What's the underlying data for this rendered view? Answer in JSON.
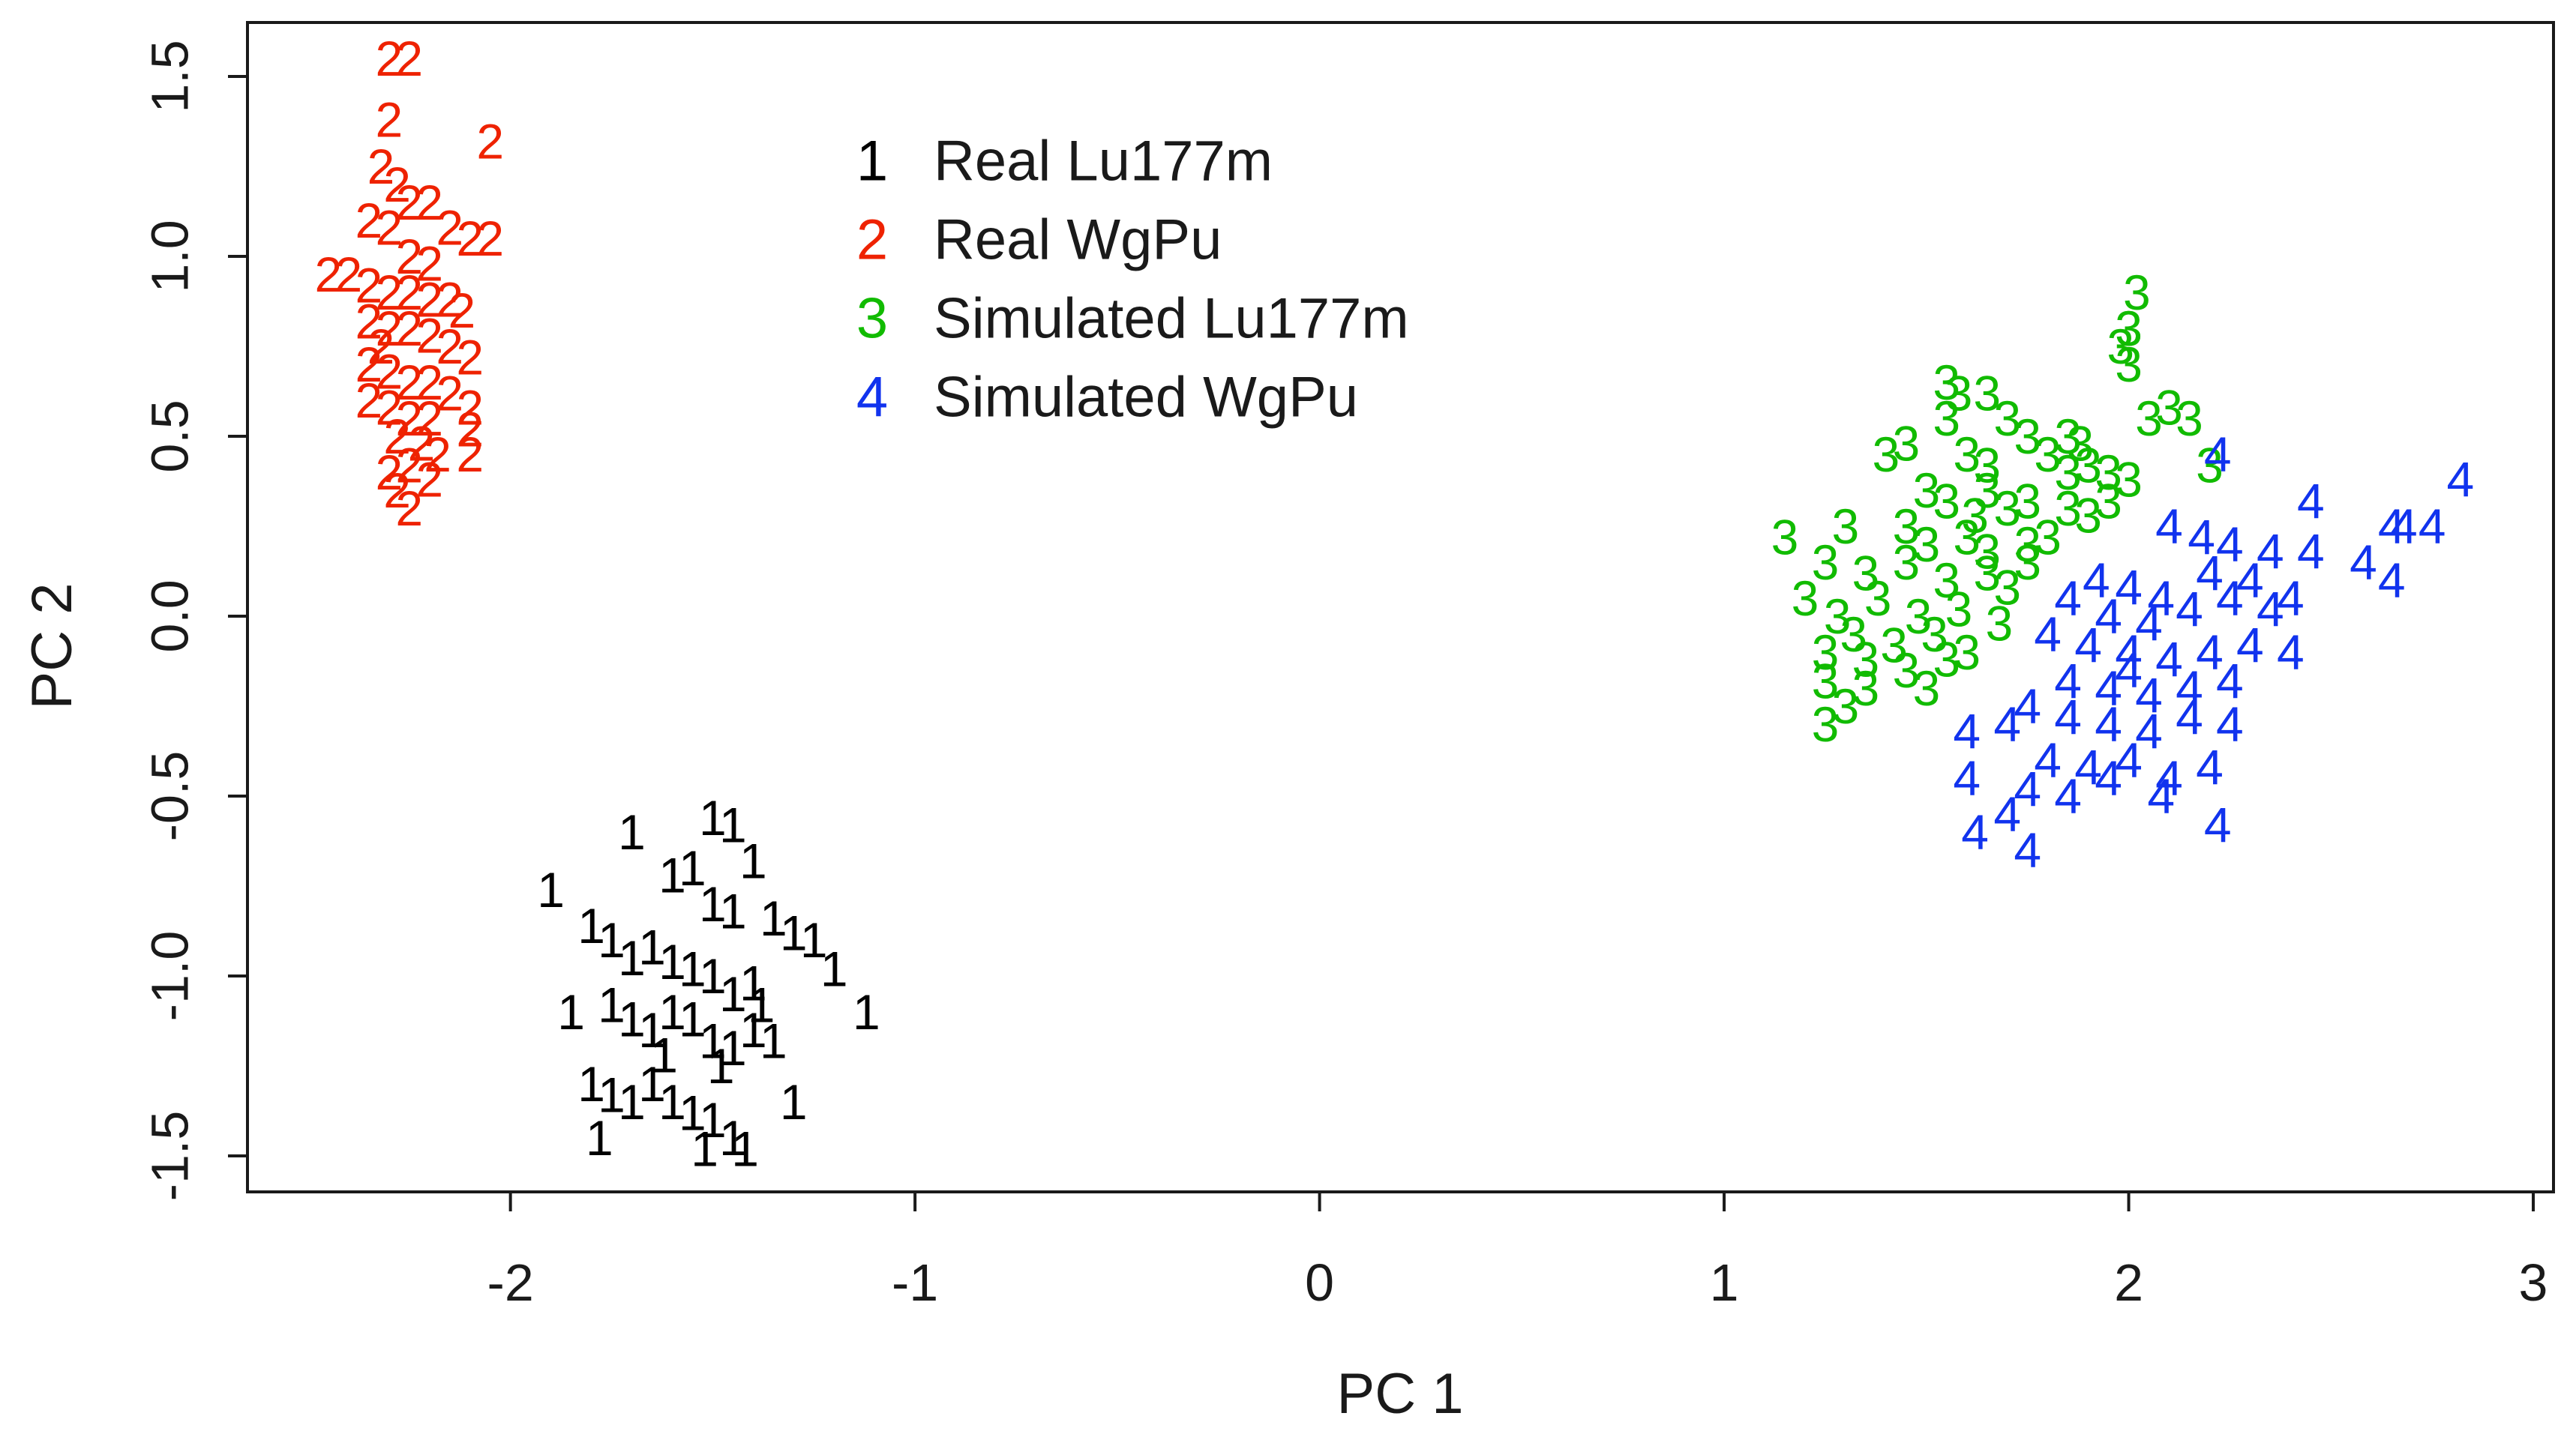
{
  "chart_data": {
    "type": "scatter",
    "title": "",
    "xlabel": "PC 1",
    "ylabel": "PC 2",
    "xlim": [
      -2.65,
      3.05
    ],
    "ylim": [
      -1.6,
      1.65
    ],
    "xticks": [
      -2,
      -1,
      0,
      1,
      2,
      3
    ],
    "yticks": [
      -1.5,
      -1.0,
      -0.5,
      0.0,
      0.5,
      1.0,
      1.5
    ],
    "xtick_labels": [
      "-2",
      "-1",
      "0",
      "1",
      "2",
      "3"
    ],
    "ytick_labels": [
      "-1.5",
      "-1.0",
      "-0.5",
      "0.0",
      "0.5",
      "1.0",
      "1.5"
    ],
    "grid": false,
    "legend_position": "top-center",
    "series": [
      {
        "name": "Real Lu177m",
        "symbol": "1",
        "color": "#000000",
        "points": [
          [
            -1.9,
            -0.76
          ],
          [
            -1.7,
            -0.6
          ],
          [
            -1.5,
            -0.56
          ],
          [
            -1.45,
            -0.58
          ],
          [
            -1.4,
            -0.68
          ],
          [
            -1.6,
            -0.72
          ],
          [
            -1.55,
            -0.7
          ],
          [
            -1.5,
            -0.8
          ],
          [
            -1.45,
            -0.82
          ],
          [
            -1.35,
            -0.84
          ],
          [
            -1.3,
            -0.88
          ],
          [
            -1.25,
            -0.9
          ],
          [
            -1.8,
            -0.86
          ],
          [
            -1.75,
            -0.9
          ],
          [
            -1.7,
            -0.95
          ],
          [
            -1.65,
            -0.92
          ],
          [
            -1.6,
            -0.96
          ],
          [
            -1.55,
            -0.98
          ],
          [
            -1.5,
            -1.0
          ],
          [
            -1.45,
            -1.05
          ],
          [
            -1.4,
            -1.02
          ],
          [
            -1.38,
            -1.08
          ],
          [
            -1.2,
            -0.98
          ],
          [
            -1.12,
            -1.1
          ],
          [
            -1.85,
            -1.1
          ],
          [
            -1.75,
            -1.08
          ],
          [
            -1.7,
            -1.12
          ],
          [
            -1.65,
            -1.15
          ],
          [
            -1.6,
            -1.1
          ],
          [
            -1.55,
            -1.12
          ],
          [
            -1.5,
            -1.18
          ],
          [
            -1.45,
            -1.2
          ],
          [
            -1.4,
            -1.15
          ],
          [
            -1.35,
            -1.18
          ],
          [
            -1.8,
            -1.3
          ],
          [
            -1.75,
            -1.33
          ],
          [
            -1.7,
            -1.35
          ],
          [
            -1.65,
            -1.3
          ],
          [
            -1.6,
            -1.35
          ],
          [
            -1.55,
            -1.38
          ],
          [
            -1.5,
            -1.4
          ],
          [
            -1.45,
            -1.45
          ],
          [
            -1.3,
            -1.35
          ],
          [
            -1.78,
            -1.45
          ],
          [
            -1.52,
            -1.48
          ],
          [
            -1.42,
            -1.48
          ],
          [
            -1.62,
            -1.22
          ],
          [
            -1.48,
            -1.25
          ]
        ]
      },
      {
        "name": "Real WgPu",
        "symbol": "2",
        "color": "#ee2200",
        "points": [
          [
            -2.3,
            1.55
          ],
          [
            -2.25,
            1.55
          ],
          [
            -2.3,
            1.38
          ],
          [
            -2.05,
            1.32
          ],
          [
            -2.32,
            1.25
          ],
          [
            -2.28,
            1.2
          ],
          [
            -2.25,
            1.15
          ],
          [
            -2.2,
            1.15
          ],
          [
            -2.35,
            1.1
          ],
          [
            -2.3,
            1.08
          ],
          [
            -2.15,
            1.08
          ],
          [
            -2.1,
            1.05
          ],
          [
            -2.05,
            1.05
          ],
          [
            -2.25,
            1.0
          ],
          [
            -2.2,
            0.98
          ],
          [
            -2.45,
            0.95
          ],
          [
            -2.4,
            0.95
          ],
          [
            -2.35,
            0.92
          ],
          [
            -2.3,
            0.9
          ],
          [
            -2.25,
            0.9
          ],
          [
            -2.2,
            0.88
          ],
          [
            -2.15,
            0.88
          ],
          [
            -2.12,
            0.85
          ],
          [
            -2.35,
            0.82
          ],
          [
            -2.3,
            0.8
          ],
          [
            -2.25,
            0.8
          ],
          [
            -2.2,
            0.78
          ],
          [
            -2.15,
            0.75
          ],
          [
            -2.1,
            0.72
          ],
          [
            -2.35,
            0.7
          ],
          [
            -2.3,
            0.68
          ],
          [
            -2.25,
            0.65
          ],
          [
            -2.2,
            0.65
          ],
          [
            -2.15,
            0.62
          ],
          [
            -2.35,
            0.6
          ],
          [
            -2.3,
            0.58
          ],
          [
            -2.25,
            0.55
          ],
          [
            -2.2,
            0.55
          ],
          [
            -2.1,
            0.58
          ],
          [
            -2.28,
            0.5
          ],
          [
            -2.22,
            0.48
          ],
          [
            -2.18,
            0.45
          ],
          [
            -2.1,
            0.45
          ],
          [
            -2.25,
            0.42
          ],
          [
            -2.3,
            0.4
          ],
          [
            -2.2,
            0.38
          ],
          [
            -2.28,
            0.35
          ],
          [
            -2.25,
            0.3
          ],
          [
            -2.1,
            0.52
          ],
          [
            -2.32,
            0.75
          ]
        ]
      },
      {
        "name": "Simulated Lu177m",
        "symbol": "3",
        "color": "#11bb00",
        "points": [
          [
            2.02,
            0.9
          ],
          [
            2.0,
            0.8
          ],
          [
            1.98,
            0.75
          ],
          [
            2.0,
            0.7
          ],
          [
            2.0,
            0.8
          ],
          [
            1.55,
            0.65
          ],
          [
            1.58,
            0.62
          ],
          [
            1.65,
            0.62
          ],
          [
            1.55,
            0.55
          ],
          [
            1.75,
            0.5
          ],
          [
            1.7,
            0.55
          ],
          [
            1.85,
            0.5
          ],
          [
            2.05,
            0.55
          ],
          [
            2.1,
            0.58
          ],
          [
            2.15,
            0.55
          ],
          [
            1.4,
            0.45
          ],
          [
            1.45,
            0.48
          ],
          [
            1.6,
            0.45
          ],
          [
            1.65,
            0.42
          ],
          [
            1.8,
            0.45
          ],
          [
            1.85,
            0.4
          ],
          [
            1.9,
            0.42
          ],
          [
            1.95,
            0.4
          ],
          [
            2.0,
            0.38
          ],
          [
            2.2,
            0.42
          ],
          [
            1.5,
            0.35
          ],
          [
            1.55,
            0.32
          ],
          [
            1.65,
            0.35
          ],
          [
            1.7,
            0.3
          ],
          [
            1.75,
            0.32
          ],
          [
            1.85,
            0.3
          ],
          [
            1.9,
            0.28
          ],
          [
            1.95,
            0.32
          ],
          [
            1.15,
            0.22
          ],
          [
            1.3,
            0.25
          ],
          [
            1.45,
            0.25
          ],
          [
            1.5,
            0.2
          ],
          [
            1.6,
            0.22
          ],
          [
            1.65,
            0.18
          ],
          [
            1.75,
            0.2
          ],
          [
            1.8,
            0.22
          ],
          [
            1.25,
            0.15
          ],
          [
            1.35,
            0.12
          ],
          [
            1.45,
            0.15
          ],
          [
            1.55,
            0.1
          ],
          [
            1.65,
            0.12
          ],
          [
            1.7,
            0.08
          ],
          [
            1.75,
            0.15
          ],
          [
            1.2,
            0.05
          ],
          [
            1.28,
            0.0
          ],
          [
            1.38,
            0.05
          ],
          [
            1.48,
            0.0
          ],
          [
            1.58,
            0.02
          ],
          [
            1.68,
            -0.02
          ],
          [
            1.32,
            -0.05
          ],
          [
            1.42,
            -0.08
          ],
          [
            1.52,
            -0.05
          ],
          [
            1.6,
            -0.1
          ],
          [
            1.25,
            -0.1
          ],
          [
            1.35,
            -0.12
          ],
          [
            1.45,
            -0.15
          ],
          [
            1.55,
            -0.12
          ],
          [
            1.25,
            -0.18
          ],
          [
            1.35,
            -0.2
          ],
          [
            1.3,
            -0.25
          ],
          [
            1.25,
            -0.3
          ],
          [
            1.5,
            -0.2
          ],
          [
            1.62,
            0.28
          ],
          [
            1.88,
            0.48
          ]
        ]
      },
      {
        "name": "Simulated WgPu",
        "symbol": "4",
        "color": "#1133ee",
        "points": [
          [
            2.82,
            0.38
          ],
          [
            2.45,
            0.32
          ],
          [
            2.68,
            0.25
          ],
          [
            2.22,
            0.45
          ],
          [
            2.65,
            0.25
          ],
          [
            2.75,
            0.25
          ],
          [
            2.1,
            0.25
          ],
          [
            2.18,
            0.22
          ],
          [
            2.25,
            0.2
          ],
          [
            2.35,
            0.18
          ],
          [
            2.45,
            0.18
          ],
          [
            2.58,
            0.15
          ],
          [
            2.3,
            0.1
          ],
          [
            2.2,
            0.12
          ],
          [
            1.92,
            0.1
          ],
          [
            2.0,
            0.08
          ],
          [
            2.08,
            0.05
          ],
          [
            2.15,
            0.02
          ],
          [
            1.85,
            0.05
          ],
          [
            1.95,
            0.0
          ],
          [
            2.05,
            -0.02
          ],
          [
            2.25,
            0.05
          ],
          [
            2.35,
            0.02
          ],
          [
            2.65,
            0.1
          ],
          [
            2.4,
            0.05
          ],
          [
            1.8,
            -0.05
          ],
          [
            1.9,
            -0.08
          ],
          [
            2.0,
            -0.1
          ],
          [
            2.1,
            -0.12
          ],
          [
            2.2,
            -0.1
          ],
          [
            2.3,
            -0.08
          ],
          [
            2.4,
            -0.1
          ],
          [
            1.85,
            -0.18
          ],
          [
            1.95,
            -0.2
          ],
          [
            2.05,
            -0.22
          ],
          [
            2.15,
            -0.2
          ],
          [
            2.25,
            -0.18
          ],
          [
            1.75,
            -0.25
          ],
          [
            1.85,
            -0.28
          ],
          [
            1.95,
            -0.3
          ],
          [
            2.05,
            -0.32
          ],
          [
            2.15,
            -0.28
          ],
          [
            2.25,
            -0.3
          ],
          [
            1.6,
            -0.32
          ],
          [
            1.7,
            -0.3
          ],
          [
            1.8,
            -0.4
          ],
          [
            1.9,
            -0.42
          ],
          [
            2.0,
            -0.4
          ],
          [
            2.1,
            -0.45
          ],
          [
            2.2,
            -0.42
          ],
          [
            1.75,
            -0.48
          ],
          [
            1.85,
            -0.5
          ],
          [
            1.95,
            -0.45
          ],
          [
            2.08,
            -0.5
          ],
          [
            1.7,
            -0.55
          ],
          [
            1.62,
            -0.6
          ],
          [
            1.75,
            -0.65
          ],
          [
            2.22,
            -0.58
          ],
          [
            1.6,
            -0.45
          ],
          [
            2.0,
            -0.15
          ]
        ]
      }
    ]
  }
}
